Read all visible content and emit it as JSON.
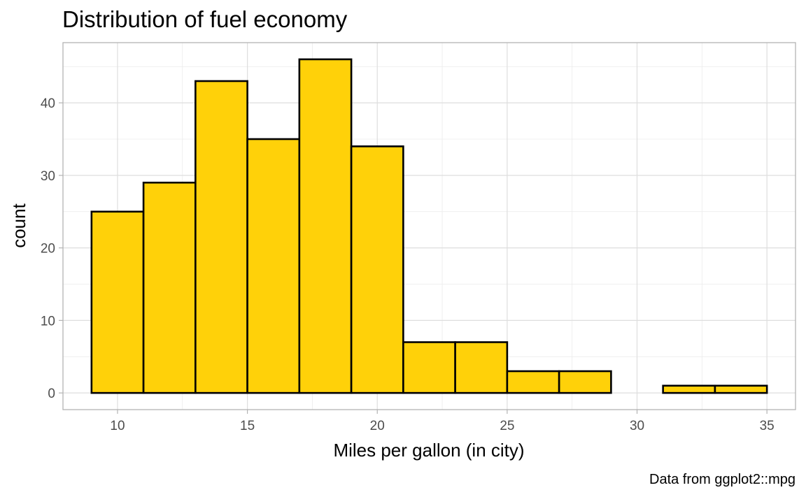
{
  "chart_data": {
    "type": "bar",
    "title": "Distribution of fuel economy",
    "xlabel": "Miles per gallon (in city)",
    "ylabel": "count",
    "caption": "Data from ggplot2::mpg",
    "bins": [
      {
        "x0": 9,
        "x1": 11,
        "count": 25
      },
      {
        "x0": 11,
        "x1": 13,
        "count": 29
      },
      {
        "x0": 13,
        "x1": 15,
        "count": 43
      },
      {
        "x0": 15,
        "x1": 17,
        "count": 35
      },
      {
        "x0": 17,
        "x1": 19,
        "count": 46
      },
      {
        "x0": 19,
        "x1": 21,
        "count": 34
      },
      {
        "x0": 21,
        "x1": 23,
        "count": 7
      },
      {
        "x0": 23,
        "x1": 25,
        "count": 7
      },
      {
        "x0": 25,
        "x1": 27,
        "count": 3
      },
      {
        "x0": 27,
        "x1": 29,
        "count": 3
      },
      {
        "x0": 29,
        "x1": 31,
        "count": 0
      },
      {
        "x0": 31,
        "x1": 33,
        "count": 1
      },
      {
        "x0": 33,
        "x1": 35,
        "count": 1
      }
    ],
    "xlim": [
      7.9,
      36.1
    ],
    "ylim": [
      -2.3,
      48.3
    ],
    "x_ticks": [
      10,
      15,
      20,
      25,
      30,
      35
    ],
    "x_tick_labels": [
      "10",
      "15",
      "20",
      "25",
      "30",
      "35"
    ],
    "y_ticks": [
      0,
      10,
      20,
      30,
      40
    ],
    "y_tick_labels": [
      "0",
      "10",
      "20",
      "30",
      "40"
    ],
    "grid": true,
    "legend": "none",
    "colors": {
      "fill": "#FFD109",
      "outline": "#000000",
      "panel_border": "#b3b3b3"
    }
  }
}
